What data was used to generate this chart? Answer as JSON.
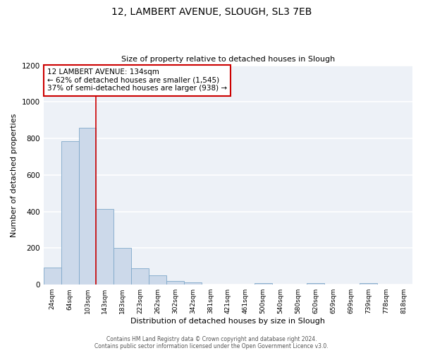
{
  "title_line1": "12, LAMBERT AVENUE, SLOUGH, SL3 7EB",
  "title_line2": "Size of property relative to detached houses in Slough",
  "xlabel": "Distribution of detached houses by size in Slough",
  "ylabel": "Number of detached properties",
  "categories": [
    "24sqm",
    "64sqm",
    "103sqm",
    "143sqm",
    "183sqm",
    "223sqm",
    "262sqm",
    "302sqm",
    "342sqm",
    "381sqm",
    "421sqm",
    "461sqm",
    "500sqm",
    "540sqm",
    "580sqm",
    "620sqm",
    "659sqm",
    "699sqm",
    "739sqm",
    "778sqm",
    "818sqm"
  ],
  "values": [
    95,
    785,
    860,
    415,
    200,
    90,
    52,
    20,
    13,
    0,
    0,
    0,
    10,
    0,
    0,
    10,
    0,
    0,
    10,
    0,
    0
  ],
  "bar_color": "#ccd9ea",
  "bar_edge_color": "#7ea8c9",
  "annotation_line1": "12 LAMBERT AVENUE: 134sqm",
  "annotation_line2": "← 62% of detached houses are smaller (1,545)",
  "annotation_line3": "37% of semi-detached houses are larger (938) →",
  "annotation_box_color": "#ffffff",
  "annotation_box_edge_color": "#cc0000",
  "vline_color": "#cc0000",
  "ylim": [
    0,
    1200
  ],
  "yticks": [
    0,
    200,
    400,
    600,
    800,
    1000,
    1200
  ],
  "footer_line1": "Contains HM Land Registry data © Crown copyright and database right 2024.",
  "footer_line2": "Contains public sector information licensed under the Open Government Licence v3.0.",
  "background_color": "#edf1f7",
  "grid_color": "#ffffff",
  "fig_background": "#ffffff"
}
